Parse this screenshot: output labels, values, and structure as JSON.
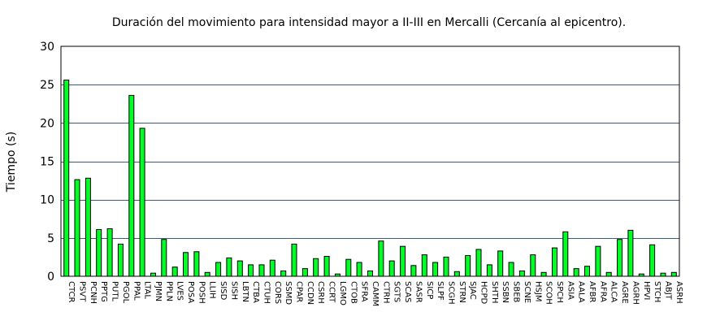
{
  "chart_data": {
    "type": "bar",
    "title": "Duración del movimiento para intensidad mayor a II-III en Mercalli (Cercanía al epicentro).",
    "xlabel": "",
    "ylabel": "Tiempo (s)",
    "ylim": [
      0,
      30
    ],
    "yticks": [
      0,
      5,
      10,
      15,
      20,
      25,
      30
    ],
    "grid": true,
    "legend": "none",
    "bar_color": "#00ff24",
    "grid_color": "#3c5a82",
    "categories": [
      "CTCR",
      "PSVT",
      "PCNH",
      "PPTG",
      "PUTL",
      "PGOL",
      "PPAL",
      "LTAL",
      "PJMN",
      "PPLN",
      "LVES",
      "POSA",
      "POSH",
      "LLIH",
      "SISD",
      "SISH",
      "LBTN",
      "CTBA",
      "CTUH",
      "CORS",
      "SSMD",
      "CPAR",
      "CCDN",
      "CSRH",
      "CCRT",
      "LGMO",
      "CTOB",
      "SFRA",
      "CAMM",
      "CTRH",
      "SGTS",
      "SCAS",
      "SASR",
      "SICP",
      "SLPF",
      "SCGH",
      "STRN",
      "SJAC",
      "HCPD",
      "SHTH",
      "SSBN",
      "SBEB",
      "SCNE",
      "HSJM",
      "SCOH",
      "SPCH",
      "ASIA",
      "AALA",
      "AFBR",
      "AFRA",
      "ALCA",
      "AGRE",
      "AGRH",
      "HPVI",
      "STCH",
      "ABJT",
      "ASRH"
    ],
    "values": [
      25.6,
      12.6,
      12.8,
      6.1,
      6.2,
      4.2,
      23.6,
      19.3,
      0.4,
      4.8,
      1.2,
      3.1,
      3.2,
      0.5,
      1.8,
      2.4,
      2.0,
      1.5,
      1.5,
      2.1,
      0.7,
      4.2,
      1.0,
      2.3,
      2.6,
      0.3,
      2.2,
      1.8,
      0.7,
      4.6,
      2.0,
      3.9,
      1.4,
      2.8,
      1.8,
      2.5,
      0.6,
      2.7,
      3.5,
      1.5,
      3.3,
      1.8,
      0.7,
      2.8,
      0.5,
      3.7,
      5.8,
      1.0,
      1.3,
      3.9,
      0.5,
      4.8,
      6.0,
      0.3,
      4.1,
      0.4,
      0.5
    ]
  }
}
